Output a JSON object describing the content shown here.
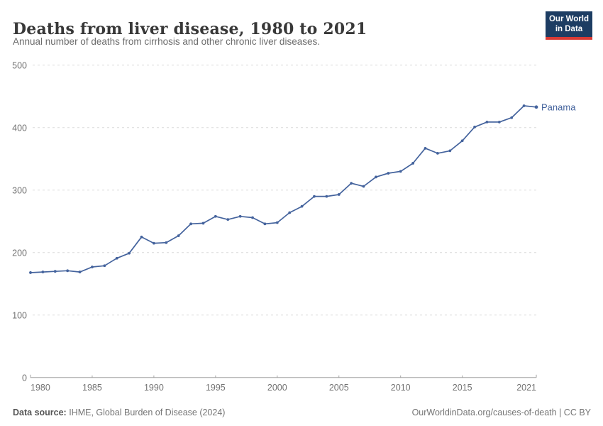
{
  "header": {
    "title": "Deaths from liver disease, 1980 to 2021",
    "subtitle": "Annual number of deaths from cirrhosis and other chronic liver diseases.",
    "logo_line1": "Our World",
    "logo_line2": "in Data"
  },
  "colors": {
    "line": "#44639d",
    "series_label": "#44639d",
    "grid": "#dadada",
    "axis": "#a3a3a3",
    "tick_label": "#737373",
    "logo_bg": "#1d3d63",
    "logo_red": "#d93a34",
    "title": "#383838",
    "subtitle": "#6b6b6b"
  },
  "chart_data": {
    "type": "line",
    "title": "Deaths from liver disease, 1980 to 2021",
    "subtitle": "Annual number of deaths from cirrhosis and other chronic liver diseases.",
    "xlabel": "",
    "ylabel": "",
    "xlim": [
      1980,
      2021
    ],
    "ylim": [
      0,
      500
    ],
    "x_ticks": [
      1980,
      1985,
      1990,
      1995,
      2000,
      2005,
      2010,
      2015,
      2021
    ],
    "y_ticks": [
      0,
      100,
      200,
      300,
      400,
      500
    ],
    "grid": "horizontal-dashed",
    "legend_position": "end-of-line",
    "x": [
      1980,
      1981,
      1982,
      1983,
      1984,
      1985,
      1986,
      1987,
      1988,
      1989,
      1990,
      1991,
      1992,
      1993,
      1994,
      1995,
      1996,
      1997,
      1998,
      1999,
      2000,
      2001,
      2002,
      2003,
      2004,
      2005,
      2006,
      2007,
      2008,
      2009,
      2010,
      2011,
      2012,
      2013,
      2014,
      2015,
      2016,
      2017,
      2018,
      2019,
      2020,
      2021
    ],
    "series": [
      {
        "name": "Panama",
        "values": [
          168,
          169,
          170,
          171,
          169,
          177,
          179,
          191,
          199,
          225,
          215,
          216,
          227,
          246,
          247,
          258,
          253,
          258,
          256,
          246,
          248,
          264,
          274,
          290,
          290,
          293,
          311,
          306,
          321,
          327,
          330,
          343,
          367,
          359,
          363,
          379,
          401,
          409,
          409,
          416,
          435,
          433
        ]
      }
    ]
  },
  "footer": {
    "source_label": "Data source:",
    "source_value": " IHME, Global Burden of Disease (2024)",
    "credit": "OurWorldinData.org/causes-of-death | CC BY"
  }
}
